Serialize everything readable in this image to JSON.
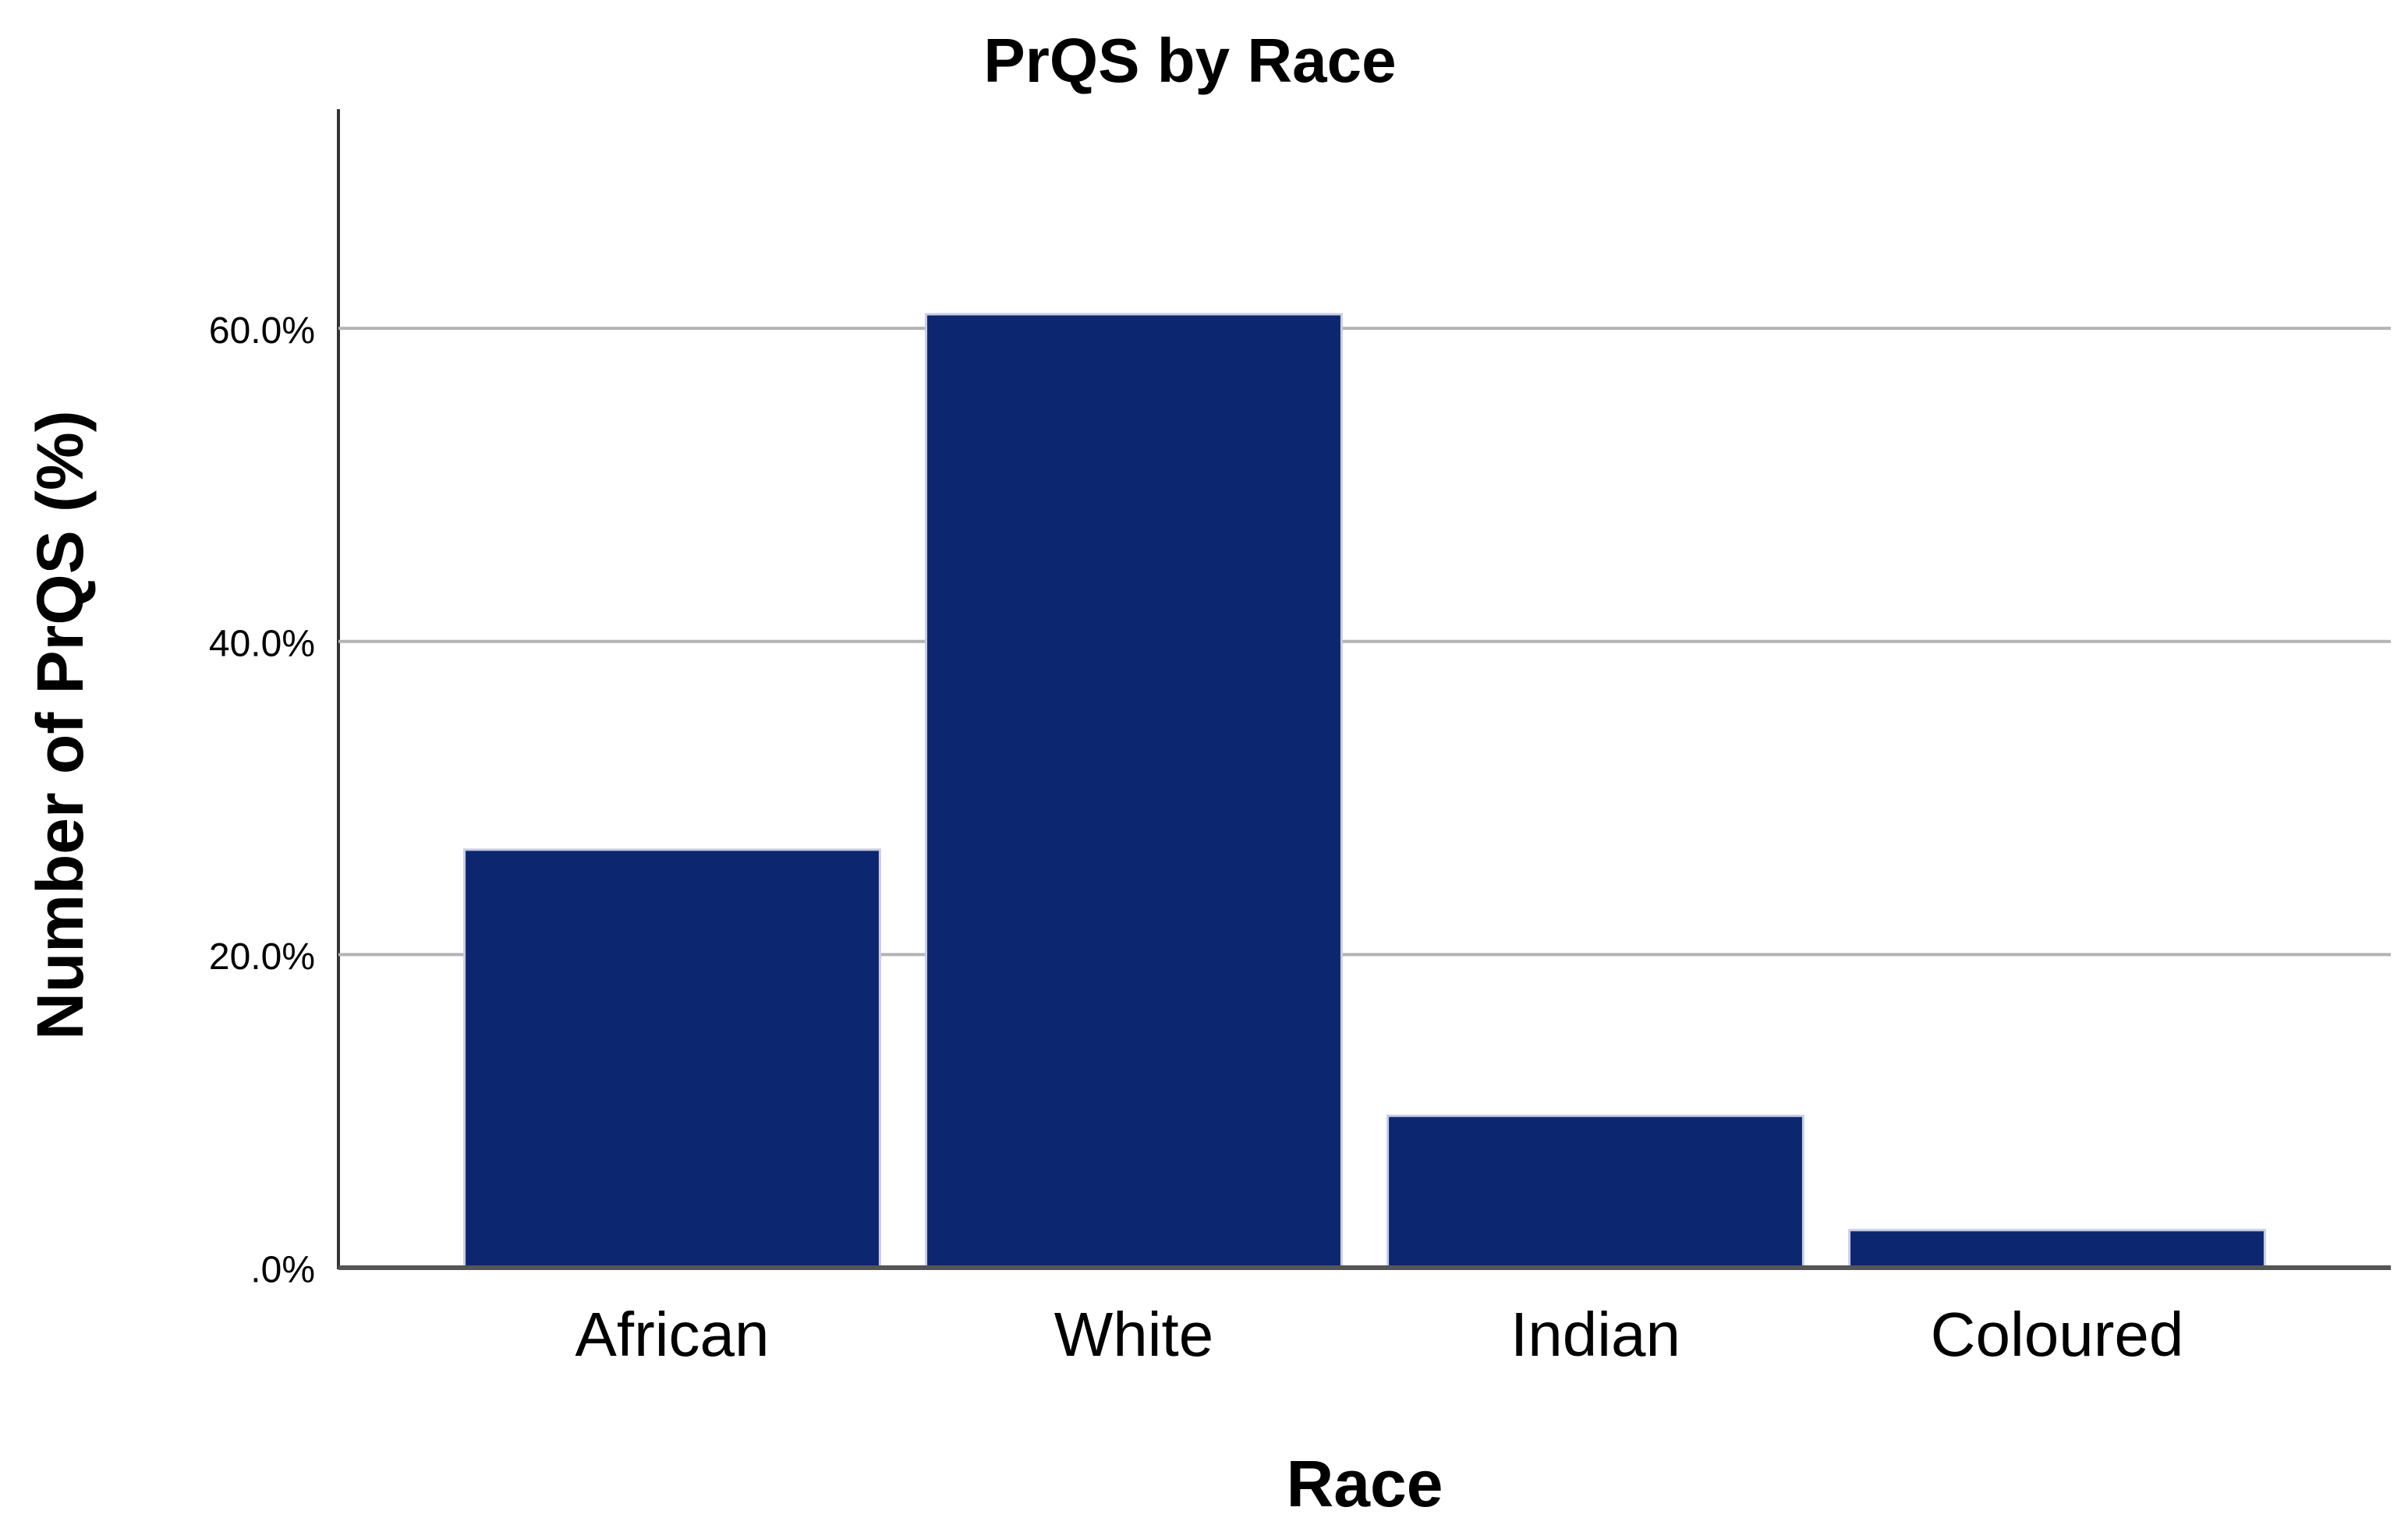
{
  "chart_data": {
    "type": "bar",
    "title": "PrQS by Race",
    "x_label": "Race",
    "y_label": "Number of PrQS (%)",
    "categories": [
      "African",
      "White",
      "Indian",
      "Coloured"
    ],
    "values": [
      26.7,
      60.9,
      9.7,
      2.4
    ],
    "color": "#0c2670",
    "ylim": [
      0,
      74
    ],
    "yticks": [
      {
        "value": 0,
        "label": ".0%"
      },
      {
        "value": 20,
        "label": "20.0%"
      },
      {
        "value": 40,
        "label": "40.0%"
      },
      {
        "value": 60,
        "label": "60.0%"
      }
    ],
    "grid": true
  }
}
